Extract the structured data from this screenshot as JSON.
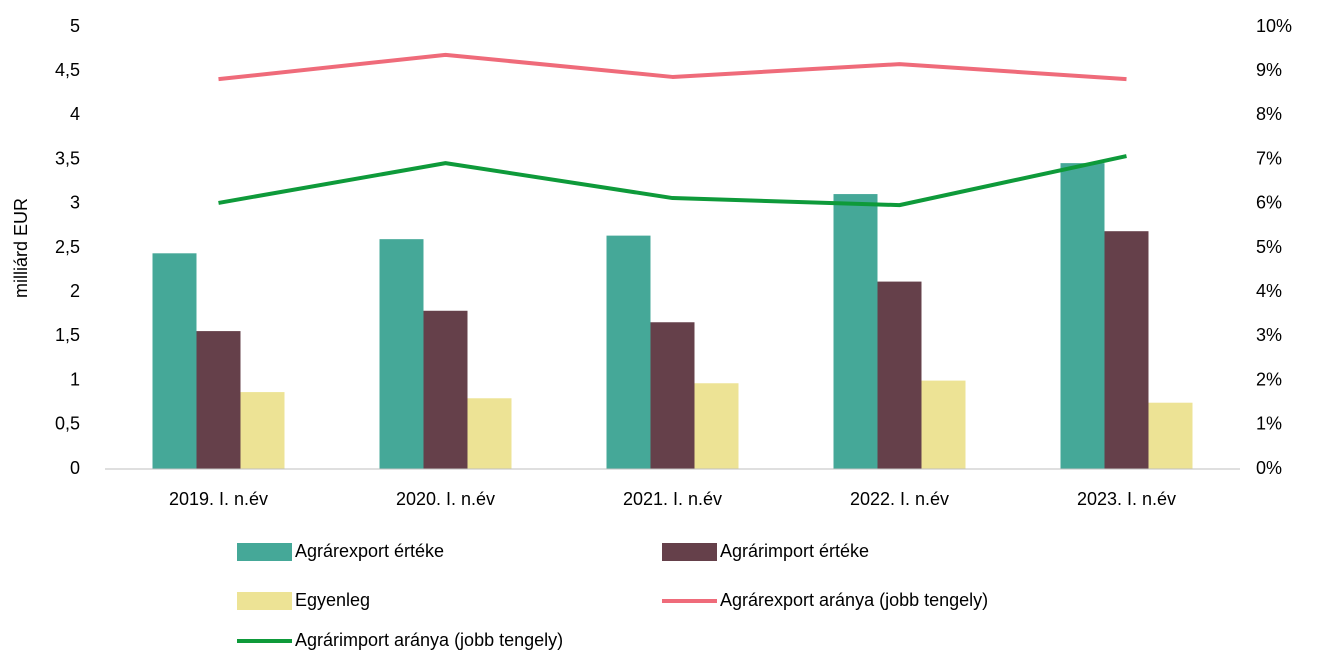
{
  "chart_data": {
    "type": "bar",
    "ylabel": "milliárd EUR",
    "categories": [
      "2019. I. n.év",
      "2020. I. n.év",
      "2021. I. n.év",
      "2022. I. n.év",
      "2023. I. n.év"
    ],
    "series": [
      {
        "name": "Agrárexport értéke",
        "color": "#45a898",
        "values": [
          2.44,
          2.6,
          2.64,
          3.11,
          3.46
        ]
      },
      {
        "name": "Agrárimport értéke",
        "color": "#65404a",
        "values": [
          1.56,
          1.79,
          1.66,
          2.12,
          2.69
        ]
      },
      {
        "name": "Egyenleg",
        "color": "#ede395",
        "values": [
          0.87,
          0.8,
          0.97,
          1.0,
          0.75
        ]
      },
      {
        "name": "Agrárexport aránya (jobb tengely)",
        "color": "#ef6b7a",
        "type": "line",
        "axis": "y2",
        "values": [
          8.82,
          9.37,
          8.87,
          9.16,
          8.82
        ]
      },
      {
        "name": "Agrárimport aránya (jobb tengely)",
        "color": "#0e9a3a",
        "type": "line",
        "axis": "y2",
        "values": [
          6.02,
          6.92,
          6.13,
          5.97,
          7.08
        ]
      }
    ],
    "ylim": [
      0,
      5
    ],
    "yticks": [
      0,
      {
        "value": 0.5,
        "label": "0,5"
      },
      1,
      {
        "value": 1.5,
        "label": "1,5"
      },
      2,
      {
        "value": 2.5,
        "label": "2,5"
      },
      3,
      {
        "value": 3.5,
        "label": "3,5"
      },
      4,
      {
        "value": 4.5,
        "label": "4,5"
      },
      5
    ],
    "y2lim": [
      0,
      10
    ],
    "y2ticks": [
      {
        "value": 0,
        "label": "0%"
      },
      {
        "value": 1,
        "label": "1%"
      },
      {
        "value": 2,
        "label": "2%"
      },
      {
        "value": 3,
        "label": "3%"
      },
      {
        "value": 4,
        "label": "4%"
      },
      {
        "value": 5,
        "label": "5%"
      },
      {
        "value": 6,
        "label": "6%"
      },
      {
        "value": 7,
        "label": "7%"
      },
      {
        "value": 8,
        "label": "8%"
      },
      {
        "value": 9,
        "label": "9%"
      },
      {
        "value": 10,
        "label": "10%"
      }
    ],
    "grid": false,
    "legend": "bottom"
  }
}
